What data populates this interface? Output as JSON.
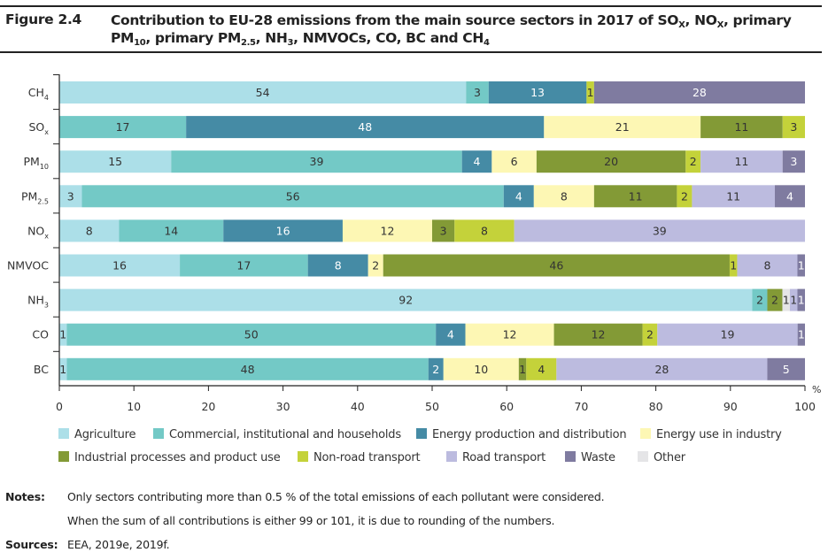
{
  "header": {
    "figure_number": "Figure 2.4",
    "title_line1_parts": [
      "Contribution to EU-28 emissions from the main source sectors in 2017 of SO",
      "X",
      ", NO",
      "X",
      ", primary"
    ],
    "title_line2_parts": [
      "PM",
      "10",
      ", primary PM",
      "2.5",
      ", NH",
      "3",
      ", NMVOCs, CO, BC and CH",
      "4"
    ]
  },
  "chart_data": {
    "type": "bar",
    "orientation": "horizontal-stacked-100",
    "title": "Contribution to EU-28 emissions from the main source sectors in 2017 of SOx, NOx, primary PM10, primary PM2.5, NH3, NMVOCs, CO, BC and CH4",
    "xlabel": "%",
    "ylabel": "",
    "xlim": [
      0,
      100
    ],
    "xticks": [
      0,
      10,
      20,
      30,
      40,
      50,
      60,
      70,
      80,
      90,
      100
    ],
    "grid": false,
    "legend_position": "bottom",
    "categories": [
      {
        "base": "CH",
        "sub": "4"
      },
      {
        "base": "SO",
        "sub": "x"
      },
      {
        "base": "PM",
        "sub": "10"
      },
      {
        "base": "PM",
        "sub": "2.5"
      },
      {
        "base": "NO",
        "sub": "x"
      },
      {
        "base": "NMVOC",
        "sub": ""
      },
      {
        "base": "NH",
        "sub": "3"
      },
      {
        "base": "CO",
        "sub": ""
      },
      {
        "base": "BC",
        "sub": ""
      }
    ],
    "series": [
      {
        "name": "Agriculture",
        "color": "#acdfe8",
        "label_color": "#333333",
        "values": [
          54,
          0,
          15,
          3,
          8,
          16,
          92,
          1,
          1
        ]
      },
      {
        "name": "Commercial, institutional and households",
        "color": "#73c9c6",
        "label_color": "#333333",
        "values": [
          3,
          17,
          39,
          56,
          14,
          17,
          2,
          50,
          48
        ]
      },
      {
        "name": "Energy production and distribution",
        "color": "#458ba5",
        "label_color": "#ffffff",
        "values": [
          13,
          48,
          4,
          4,
          16,
          8,
          0,
          4,
          2
        ]
      },
      {
        "name": "Energy use in industry",
        "color": "#fdf7b4",
        "label_color": "#333333",
        "values": [
          0,
          21,
          6,
          8,
          12,
          2,
          0,
          12,
          10
        ]
      },
      {
        "name": "Industrial processes and product use",
        "color": "#839a36",
        "label_color": "#333333",
        "values": [
          0,
          11,
          20,
          11,
          3,
          46,
          2,
          12,
          1
        ]
      },
      {
        "name": "Non-road transport",
        "color": "#c4d23a",
        "label_color": "#333333",
        "values": [
          1,
          3,
          2,
          2,
          8,
          1,
          0,
          2,
          4
        ]
      },
      {
        "name": "Other",
        "color": "#e5e5e7",
        "label_color": "#333333",
        "values": [
          0,
          0,
          0,
          0,
          0,
          0,
          1,
          0,
          0
        ]
      },
      {
        "name": "Road transport",
        "color": "#bcbbdf",
        "label_color": "#333333",
        "values": [
          0,
          0,
          11,
          11,
          39,
          8,
          1,
          19,
          28
        ]
      },
      {
        "name": "Waste",
        "color": "#7f7ba0",
        "label_color": "#ffffff",
        "values": [
          28,
          0,
          3,
          4,
          0,
          1,
          1,
          1,
          5
        ]
      }
    ]
  },
  "legend": {
    "row1": [
      "Agriculture",
      "Commercial, institutional and households",
      "Energy production and distribution",
      "Energy use in industry"
    ],
    "row2": [
      "Industrial processes and product use",
      "Non-road transport",
      "Road transport",
      "Waste",
      "Other"
    ]
  },
  "notes": {
    "notes_label": "Notes:",
    "note1": "Only sectors contributing more than 0.5 % of the total emissions of each pollutant were considered.",
    "note2": "When the sum of all contributions is either 99 or 101, it is due to rounding of the numbers.",
    "sources_label": "Sources:",
    "sources": "EEA, 2019e, 2019f."
  }
}
